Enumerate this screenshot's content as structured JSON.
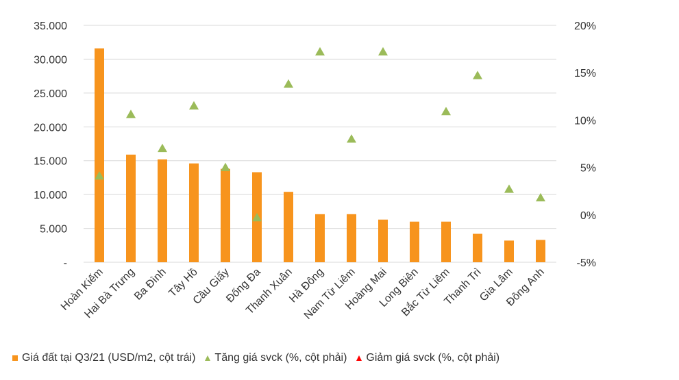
{
  "chart_data": {
    "type": "bar",
    "categories": [
      "Hoàn Kiếm",
      "Hai Bà Trưng",
      "Ba Đình",
      "Tây Hồ",
      "Cầu Giấy",
      "Đống Đa",
      "Thanh Xuân",
      "Hà Đông",
      "Nam Từ Liêm",
      "Hoàng Mai",
      "Long Biên",
      "Bắc Từ Liêm",
      "Thanh Trì",
      "Gia Lâm",
      "Đông Anh"
    ],
    "series": [
      {
        "name": "Giá đất tại Q3/21 (USD/m2, cột trái)",
        "type": "bar",
        "axis": "left",
        "values": [
          31600,
          15900,
          15200,
          14600,
          13800,
          13300,
          10400,
          7100,
          7100,
          6300,
          6000,
          6000,
          4200,
          3200,
          3300
        ]
      },
      {
        "name": "Tăng giá svck (%, cột phải)",
        "type": "scatter",
        "axis": "right",
        "values": [
          4.1,
          10.6,
          7.0,
          11.5,
          5.0,
          null,
          13.8,
          17.2,
          8.0,
          17.2,
          null,
          10.9,
          14.7,
          2.7,
          1.8
        ]
      },
      {
        "name": "Giảm giá svck (%, cột phải)",
        "type": "scatter",
        "axis": "right",
        "values": [
          null,
          null,
          null,
          null,
          null,
          -0.3,
          null,
          null,
          null,
          null,
          null,
          null,
          null,
          null,
          null
        ]
      }
    ],
    "left_axis": {
      "ylim": [
        0,
        35000
      ],
      "ticks": [
        "-",
        "5.000",
        "10.000",
        "15.000",
        "20.000",
        "25.000",
        "30.000",
        "35.000"
      ]
    },
    "right_axis": {
      "ylim": [
        -5,
        20
      ],
      "ticks": [
        "-5%",
        "0%",
        "5%",
        "10%",
        "15%",
        "20%"
      ]
    },
    "grid": true,
    "legend_position": "bottom",
    "colors": {
      "bar": "#F7941D",
      "increase": "#9BBB59",
      "decrease": "#FF0000",
      "grid": "#D9D9D9",
      "text": "#333333"
    }
  }
}
